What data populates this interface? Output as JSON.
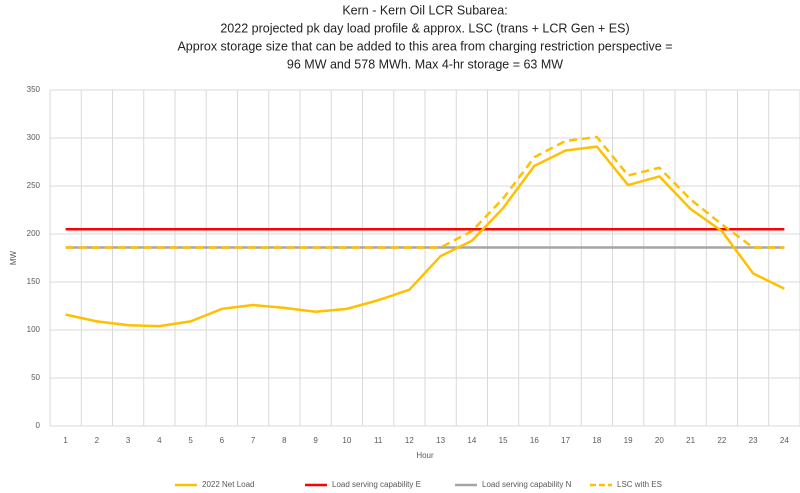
{
  "chart_data": {
    "type": "line",
    "title": [
      "Kern - Kern Oil LCR Subarea:",
      "2022 projected pk day load profile & approx. LSC (trans + LCR Gen + ES)",
      "Approx storage size that can be added to this area from charging restriction perspective =",
      "96 MW and 578 MWh. Max 4-hr storage = 63 MW"
    ],
    "x_label": "Hour",
    "y_label": "MW",
    "categories": [
      "1",
      "2",
      "3",
      "4",
      "5",
      "6",
      "7",
      "8",
      "9",
      "10",
      "11",
      "12",
      "13",
      "14",
      "15",
      "16",
      "17",
      "18",
      "19",
      "20",
      "21",
      "22",
      "23",
      "24"
    ],
    "series": [
      {
        "name": "2022 Net Load",
        "color": "#ffc000",
        "dash": false,
        "values": [
          116,
          109,
          105,
          104,
          109,
          122,
          126,
          123,
          119,
          122,
          131,
          142,
          177,
          193,
          227,
          271,
          287,
          291,
          251,
          260,
          226,
          203,
          159,
          143
        ]
      },
      {
        "name": "Load serving capability E",
        "color": "#ff0000",
        "dash": false,
        "values": [
          205,
          205,
          205,
          205,
          205,
          205,
          205,
          205,
          205,
          205,
          205,
          205,
          205,
          205,
          205,
          205,
          205,
          205,
          205,
          205,
          205,
          205,
          205,
          205
        ]
      },
      {
        "name": "Load serving capability N",
        "color": "#a5a5a5",
        "dash": false,
        "values": [
          186,
          186,
          186,
          186,
          186,
          186,
          186,
          186,
          186,
          186,
          186,
          186,
          186,
          186,
          186,
          186,
          186,
          186,
          186,
          186,
          186,
          186,
          186,
          186
        ]
      },
      {
        "name": "LSC with ES",
        "color": "#ffc000",
        "dash": true,
        "values": [
          186,
          186,
          186,
          186,
          186,
          186,
          186,
          186,
          186,
          186,
          186,
          186,
          186,
          203,
          237,
          280,
          297,
          301,
          261,
          269,
          236,
          210,
          186,
          186
        ]
      }
    ],
    "ylim": [
      0,
      350
    ],
    "yticks": [
      0,
      50,
      100,
      150,
      200,
      250,
      300,
      350
    ],
    "grid": true,
    "legend": "bottom"
  }
}
